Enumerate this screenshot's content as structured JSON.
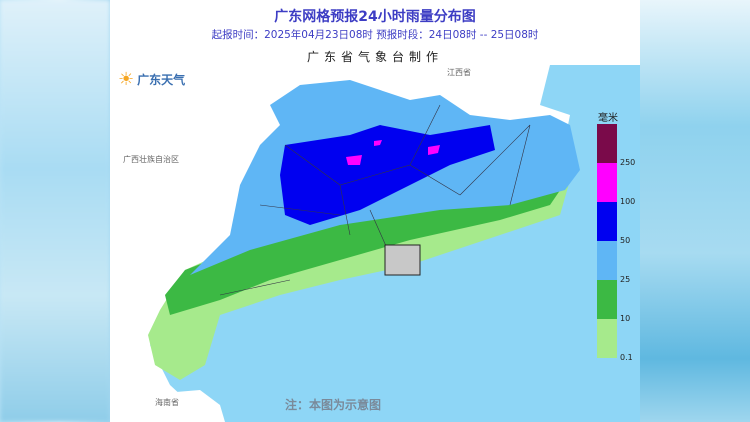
{
  "header": {
    "title": "广东网格预报24小时雨量分布图",
    "subtitle": "起报时间：2025年04月23日08时   预报时段：24日08时 -- 25日08时",
    "maker": "广东省气象台制作"
  },
  "logo": {
    "text": "广东天气",
    "icon": "sun-cloud-logo-icon"
  },
  "map": {
    "labels": {
      "jiangxi": "江西省",
      "guangxi": "广西壮族自治区",
      "hainan": "海南省"
    },
    "note": "注：本图为示意图"
  },
  "legend": {
    "unit": "毫米",
    "bins": [
      {
        "color": "#7a0a4a",
        "label": "250"
      },
      {
        "color": "#ff00ff",
        "label": "100"
      },
      {
        "color": "#0000f0",
        "label": "50"
      },
      {
        "color": "#5fb6f5",
        "label": "25"
      },
      {
        "color": "#3cb944",
        "label": "10"
      },
      {
        "color": "#a6ea8c",
        "label": "0.1"
      }
    ]
  }
}
